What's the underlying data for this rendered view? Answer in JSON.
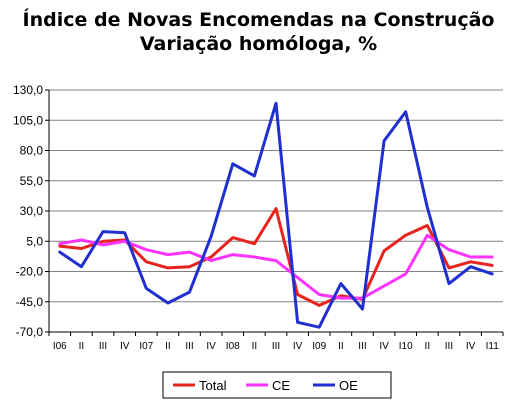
{
  "chart_data": {
    "type": "line",
    "title": "Índice de Novas Encomendas na Construção",
    "subtitle": "Variação homóloga, %",
    "xlabel": "",
    "ylabel": "",
    "ylim": [
      -70,
      130
    ],
    "y_ticks": [
      "130,0",
      "105,0",
      "80,0",
      "55,0",
      "30,0",
      "5,0",
      "-20,0",
      "-45,0",
      "-70,0"
    ],
    "y_tick_values": [
      130,
      105,
      80,
      55,
      30,
      5,
      -20,
      -45,
      -70
    ],
    "categories": [
      "I06",
      "II",
      "III",
      "IV",
      "I07",
      "II",
      "III",
      "IV",
      "I08",
      "II",
      "III",
      "IV",
      "I09",
      "II",
      "III",
      "IV",
      "I10",
      "II",
      "III",
      "IV",
      "I11"
    ],
    "grid": "horizontal",
    "legend_position": "bottom",
    "series": [
      {
        "name": "Total",
        "color": "#e8231e",
        "values": [
          1,
          -1,
          5,
          6,
          -12,
          -17,
          -16,
          -8,
          8,
          3,
          32,
          -39,
          -48,
          -40,
          -43,
          -3,
          10,
          18,
          -17,
          -12,
          -15
        ]
      },
      {
        "name": "CE",
        "color": "#ff33ff",
        "values": [
          3,
          6,
          2,
          5,
          -2,
          -6,
          -4,
          -11,
          -6,
          -8,
          -11,
          -25,
          -39,
          -42,
          -42,
          -32,
          -22,
          10,
          -2,
          -8,
          -8
        ]
      },
      {
        "name": "OE",
        "color": "#1f2fd0",
        "values": [
          -4,
          -16,
          13,
          12,
          -34,
          -46,
          -37,
          9,
          69,
          59,
          119,
          -62,
          -66,
          -30,
          -51,
          88,
          112,
          33,
          -30,
          -16,
          -22
        ]
      }
    ]
  }
}
